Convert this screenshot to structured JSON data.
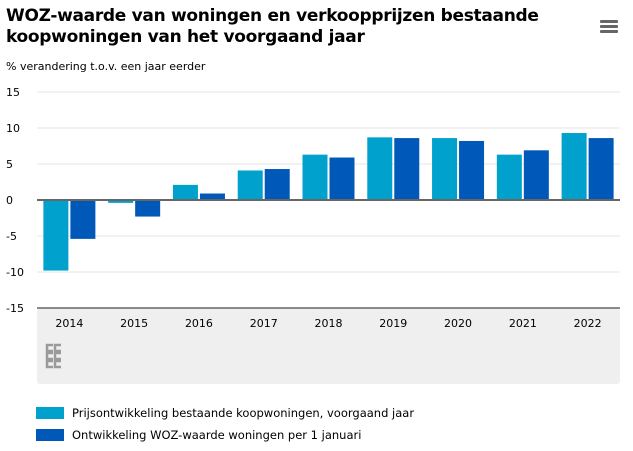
{
  "title": "WOZ-waarde van woningen en verkoopprijzen bestaande koopwoningen van het voorgaand jaar",
  "menu_icon": "hamburger-menu-icon",
  "logo": "cbs",
  "chart_data": {
    "type": "bar",
    "title": "WOZ-waarde van woningen en verkoopprijzen bestaande koopwoningen van het voorgaand jaar",
    "ylabel": "% verandering t.o.v. een jaar eerder",
    "xlabel": "",
    "ylim": [
      -15,
      15
    ],
    "yticks": [
      15,
      10,
      5,
      0,
      -5,
      -10,
      -15
    ],
    "grid": true,
    "legend": "bottom-left",
    "categories": [
      "2014",
      "2015",
      "2016",
      "2017",
      "2018",
      "2019",
      "2020",
      "2021",
      "2022"
    ],
    "series": [
      {
        "name": "Prijsontwikkeling bestaande koopwoningen, voorgaand jaar",
        "color": "#00a1cd",
        "values": [
          -9.8,
          -0.4,
          2.1,
          4.1,
          6.3,
          8.7,
          8.6,
          6.3,
          9.3
        ]
      },
      {
        "name": "Ontwikkeling WOZ-waarde woningen per 1 januari",
        "color": "#0058b8",
        "values": [
          -5.4,
          -2.3,
          0.9,
          4.3,
          5.9,
          8.6,
          8.2,
          6.9,
          8.6
        ]
      }
    ]
  }
}
